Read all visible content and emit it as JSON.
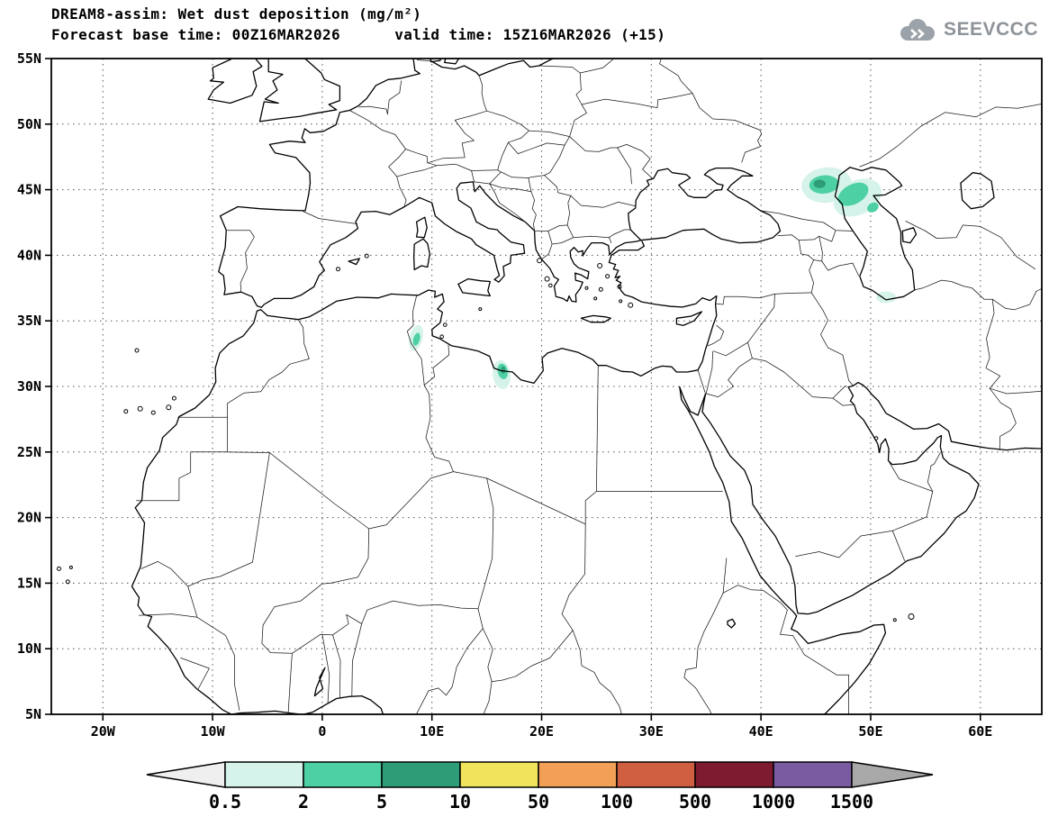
{
  "header": {
    "title_line1": "DREAM8-assim: Wet dust deposition (mg/m²)",
    "title_line2": "Forecast base time: 00Z16MAR2026      valid time: 15Z16MAR2026 (+15)",
    "logo_text": "SEEVCCC"
  },
  "chart_data": {
    "type": "map",
    "projection": "equirectangular",
    "model": "DREAM8-assim",
    "variable": "Wet dust deposition",
    "units": "mg/m²",
    "forecast_base_time": "00Z16MAR2026",
    "valid_time": "15Z16MAR2026",
    "forecast_offset_hours": 15,
    "lon_range": [
      -24.7,
      65.6
    ],
    "lat_range": [
      5,
      55
    ],
    "grid": "dotted, every 10 deg lon / 5 deg lat",
    "x_ticks": [
      {
        "lon": -20,
        "label": "20W"
      },
      {
        "lon": -10,
        "label": "10W"
      },
      {
        "lon": 0,
        "label": "0"
      },
      {
        "lon": 10,
        "label": "10E"
      },
      {
        "lon": 20,
        "label": "20E"
      },
      {
        "lon": 30,
        "label": "30E"
      },
      {
        "lon": 40,
        "label": "40E"
      },
      {
        "lon": 50,
        "label": "50E"
      },
      {
        "lon": 60,
        "label": "60E"
      }
    ],
    "y_ticks": [
      {
        "lat": 5,
        "label": "5N"
      },
      {
        "lat": 10,
        "label": "10N"
      },
      {
        "lat": 15,
        "label": "15N"
      },
      {
        "lat": 20,
        "label": "20N"
      },
      {
        "lat": 25,
        "label": "25N"
      },
      {
        "lat": 30,
        "label": "30N"
      },
      {
        "lat": 35,
        "label": "35N"
      },
      {
        "lat": 40,
        "label": "40N"
      },
      {
        "lat": 45,
        "label": "45N"
      },
      {
        "lat": 50,
        "label": "50N"
      },
      {
        "lat": 55,
        "label": "55N"
      }
    ],
    "colorbar": {
      "labels": [
        "0.5",
        "2",
        "5",
        "10",
        "50",
        "100",
        "500",
        "1000",
        "1500"
      ],
      "segment_colors": [
        "#d5f3ea",
        "#4ed0a5",
        "#2e9c77",
        "#f0e45c",
        "#f2a057",
        "#d05f41",
        "#7e1b31",
        "#7a5aa0"
      ],
      "below_min_color": "#efefef",
      "above_max_color": "#a8a8a8"
    },
    "deposition_regions": [
      {
        "name": "northwest-caspian",
        "description": "largest wet deposition area, NW of the Caspian Sea, max 5-10 mg/m²",
        "blobs": [
          {
            "level": 0,
            "lon": 46.0,
            "lat": 45.35,
            "rx": 2.3,
            "ry": 1.35,
            "rot": -5
          },
          {
            "level": 0,
            "lon": 48.8,
            "lat": 44.4,
            "rx": 2.3,
            "ry": 1.3,
            "rot": -27
          },
          {
            "level": 1,
            "lon": 45.75,
            "lat": 45.4,
            "rx": 1.35,
            "ry": 0.7,
            "rot": -5
          },
          {
            "level": 1,
            "lon": 48.4,
            "lat": 44.65,
            "rx": 1.5,
            "ry": 0.75,
            "rot": -28
          },
          {
            "level": 2,
            "lon": 45.35,
            "lat": 45.45,
            "rx": 0.55,
            "ry": 0.32,
            "rot": 0
          },
          {
            "level": 1,
            "lon": 50.2,
            "lat": 43.65,
            "rx": 0.55,
            "ry": 0.35,
            "rot": -30
          }
        ]
      },
      {
        "name": "south-caspian-iran",
        "description": "small area south of the Caspian Sea, 0.5-2 mg/m²",
        "blobs": [
          {
            "level": 0,
            "lon": 51.4,
            "lat": 36.8,
            "rx": 0.9,
            "ry": 0.45,
            "rot": 0
          }
        ]
      },
      {
        "name": "tunisia",
        "description": "small spot over central Tunisia, max 2-5 mg/m²",
        "blobs": [
          {
            "level": 0,
            "lon": 8.55,
            "lat": 33.7,
            "rx": 0.6,
            "ry": 1.0,
            "rot": 15
          },
          {
            "level": 1,
            "lon": 8.6,
            "lat": 33.6,
            "rx": 0.3,
            "ry": 0.5,
            "rot": 15
          }
        ]
      },
      {
        "name": "northwest-libya-coast",
        "description": "spot on the Gulf of Sidra coast, max 5-10 mg/m²",
        "blobs": [
          {
            "level": 0,
            "lon": 16.35,
            "lat": 30.9,
            "rx": 0.8,
            "ry": 1.1,
            "rot": -8
          },
          {
            "level": 1,
            "lon": 16.45,
            "lat": 31.15,
            "rx": 0.45,
            "ry": 0.6,
            "rot": -12
          },
          {
            "level": 2,
            "lon": 16.5,
            "lat": 31.25,
            "rx": 0.2,
            "ry": 0.28,
            "rot": 0
          }
        ]
      }
    ]
  }
}
